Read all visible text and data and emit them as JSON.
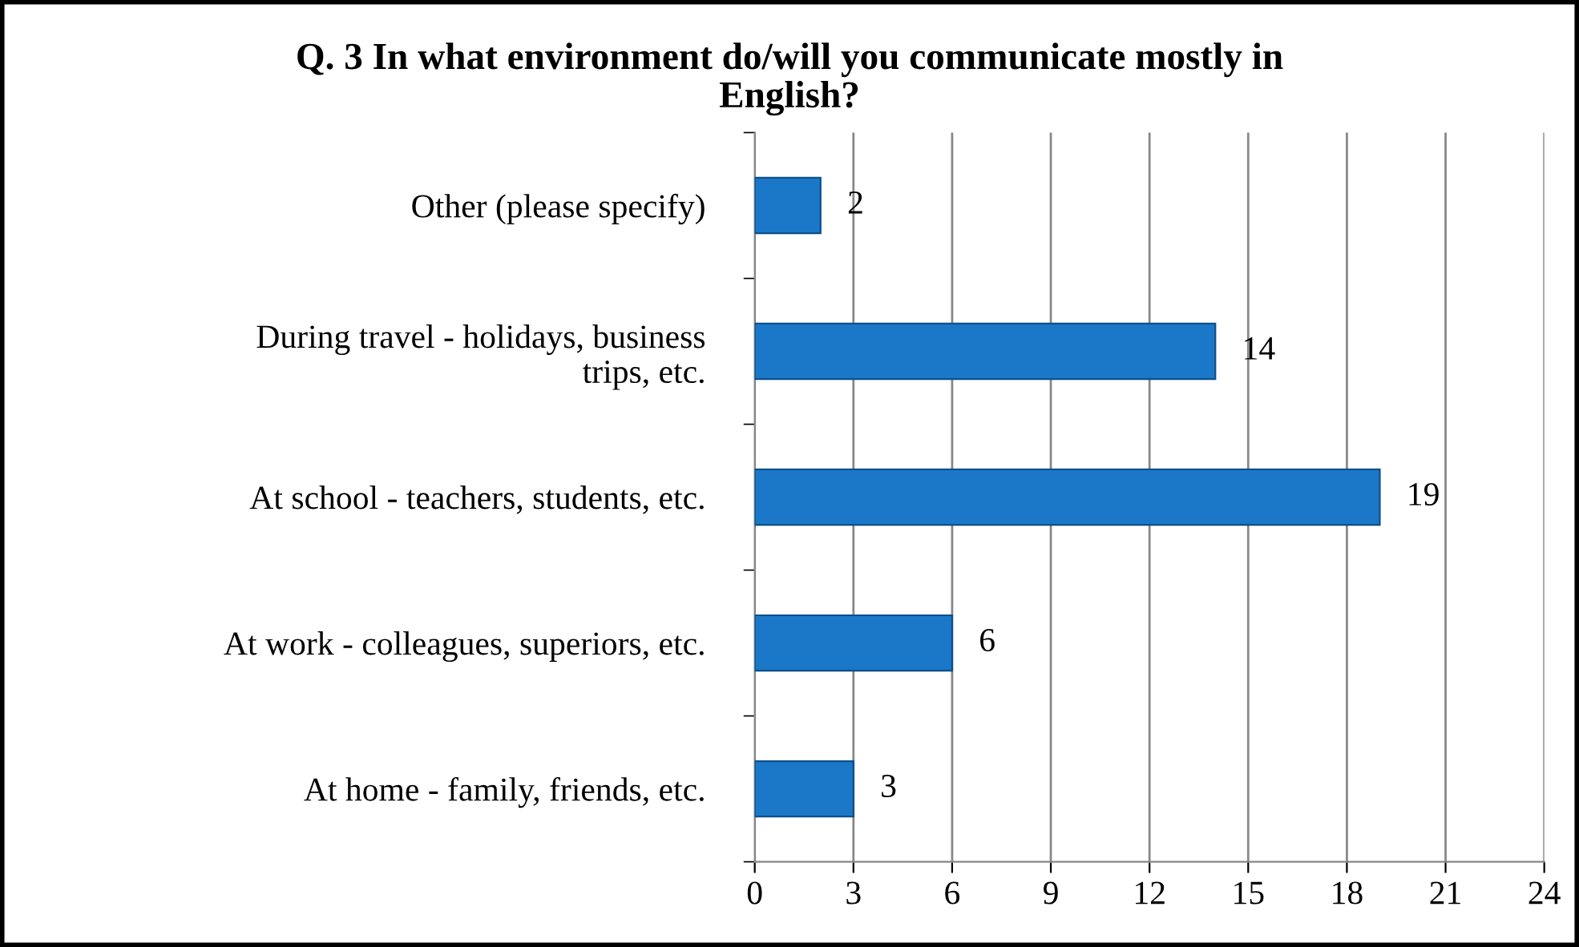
{
  "chart_data": {
    "type": "bar",
    "orientation": "horizontal",
    "title": "Q. 3 In what environment do/will you communicate mostly in English?",
    "categories": [
      "Other (please specify)",
      "During travel - holidays, business trips, etc.",
      "At school - teachers, students, etc.",
      "At work - colleagues, superiors, etc.",
      "At home - family, friends, etc."
    ],
    "values": [
      2,
      14,
      19,
      6,
      3
    ],
    "color": "#1b78c8",
    "xlim": [
      0,
      24
    ],
    "xticks": [
      0,
      3,
      6,
      9,
      12,
      15,
      18,
      21,
      24
    ],
    "grid": "x",
    "data_labels": true,
    "legend": false
  }
}
